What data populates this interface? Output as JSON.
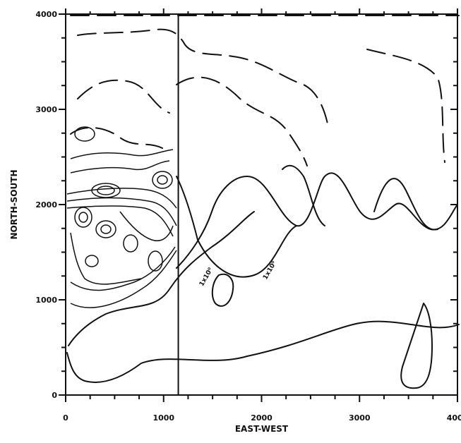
{
  "chart_data": {
    "type": "contour",
    "xlabel": "EAST-WEST",
    "ylabel": "NORTH-SOUTH",
    "xlim": [
      0,
      4000
    ],
    "ylim": [
      0,
      4000
    ],
    "x_ticks": [
      {
        "value": 0,
        "label": "0"
      },
      {
        "value": 1000,
        "label": "1000"
      },
      {
        "value": 2000,
        "label": "2000"
      },
      {
        "value": 3000,
        "label": "3000"
      },
      {
        "value": 4000,
        "label": "4000"
      }
    ],
    "y_ticks": [
      {
        "value": 0,
        "label": "0"
      },
      {
        "value": 1000,
        "label": "1000"
      },
      {
        "value": 2000,
        "label": "2000"
      },
      {
        "value": 3000,
        "label": "3000"
      },
      {
        "value": 4000,
        "label": "4000"
      }
    ],
    "minor_tick_step": 250,
    "reference_line_x": 1150,
    "annotations": [
      {
        "text": "1x10⁰",
        "x": 1450,
        "y": 1230
      },
      {
        "text": "1x10⁰",
        "x": 2100,
        "y": 1300
      }
    ],
    "grid": false,
    "legend": "none"
  }
}
